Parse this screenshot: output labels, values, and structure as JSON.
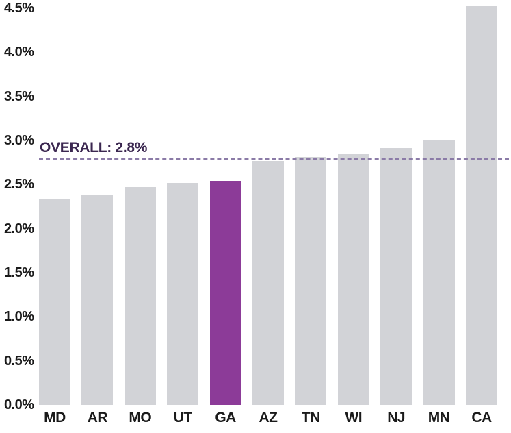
{
  "chart_data": {
    "type": "bar",
    "categories": [
      "MD",
      "AR",
      "MO",
      "UT",
      "GA",
      "AZ",
      "TN",
      "WI",
      "NJ",
      "MN",
      "CA"
    ],
    "values": [
      2.33,
      2.38,
      2.47,
      2.52,
      2.54,
      2.77,
      2.81,
      2.84,
      2.91,
      3.0,
      4.52
    ],
    "highlight_category": "GA",
    "reference_line": {
      "label": "OVERALL: 2.8%",
      "value": 2.8
    },
    "yticks": [
      {
        "label": "0.0%",
        "value": 0.0
      },
      {
        "label": "0.5%",
        "value": 0.5
      },
      {
        "label": "1.0%",
        "value": 1.0
      },
      {
        "label": "1.5%",
        "value": 1.5
      },
      {
        "label": "2.0%",
        "value": 2.0
      },
      {
        "label": "2.5%",
        "value": 2.5
      },
      {
        "label": "3.0%",
        "value": 3.0
      },
      {
        "label": "3.5%",
        "value": 3.5
      },
      {
        "label": "4.0%",
        "value": 4.0
      },
      {
        "label": "4.5%",
        "value": 4.5
      }
    ],
    "ylim": [
      0,
      4.5
    ],
    "grid": false,
    "legend": "none",
    "title": "",
    "xlabel": "",
    "ylabel": "",
    "colors": {
      "bar": "#d2d3d7",
      "highlight_bar": "#8c3b98",
      "reference_line": "#8b7ba7",
      "reference_label": "#3b2750",
      "axis_text": "#1a1a1a",
      "background": "#ffffff"
    }
  }
}
